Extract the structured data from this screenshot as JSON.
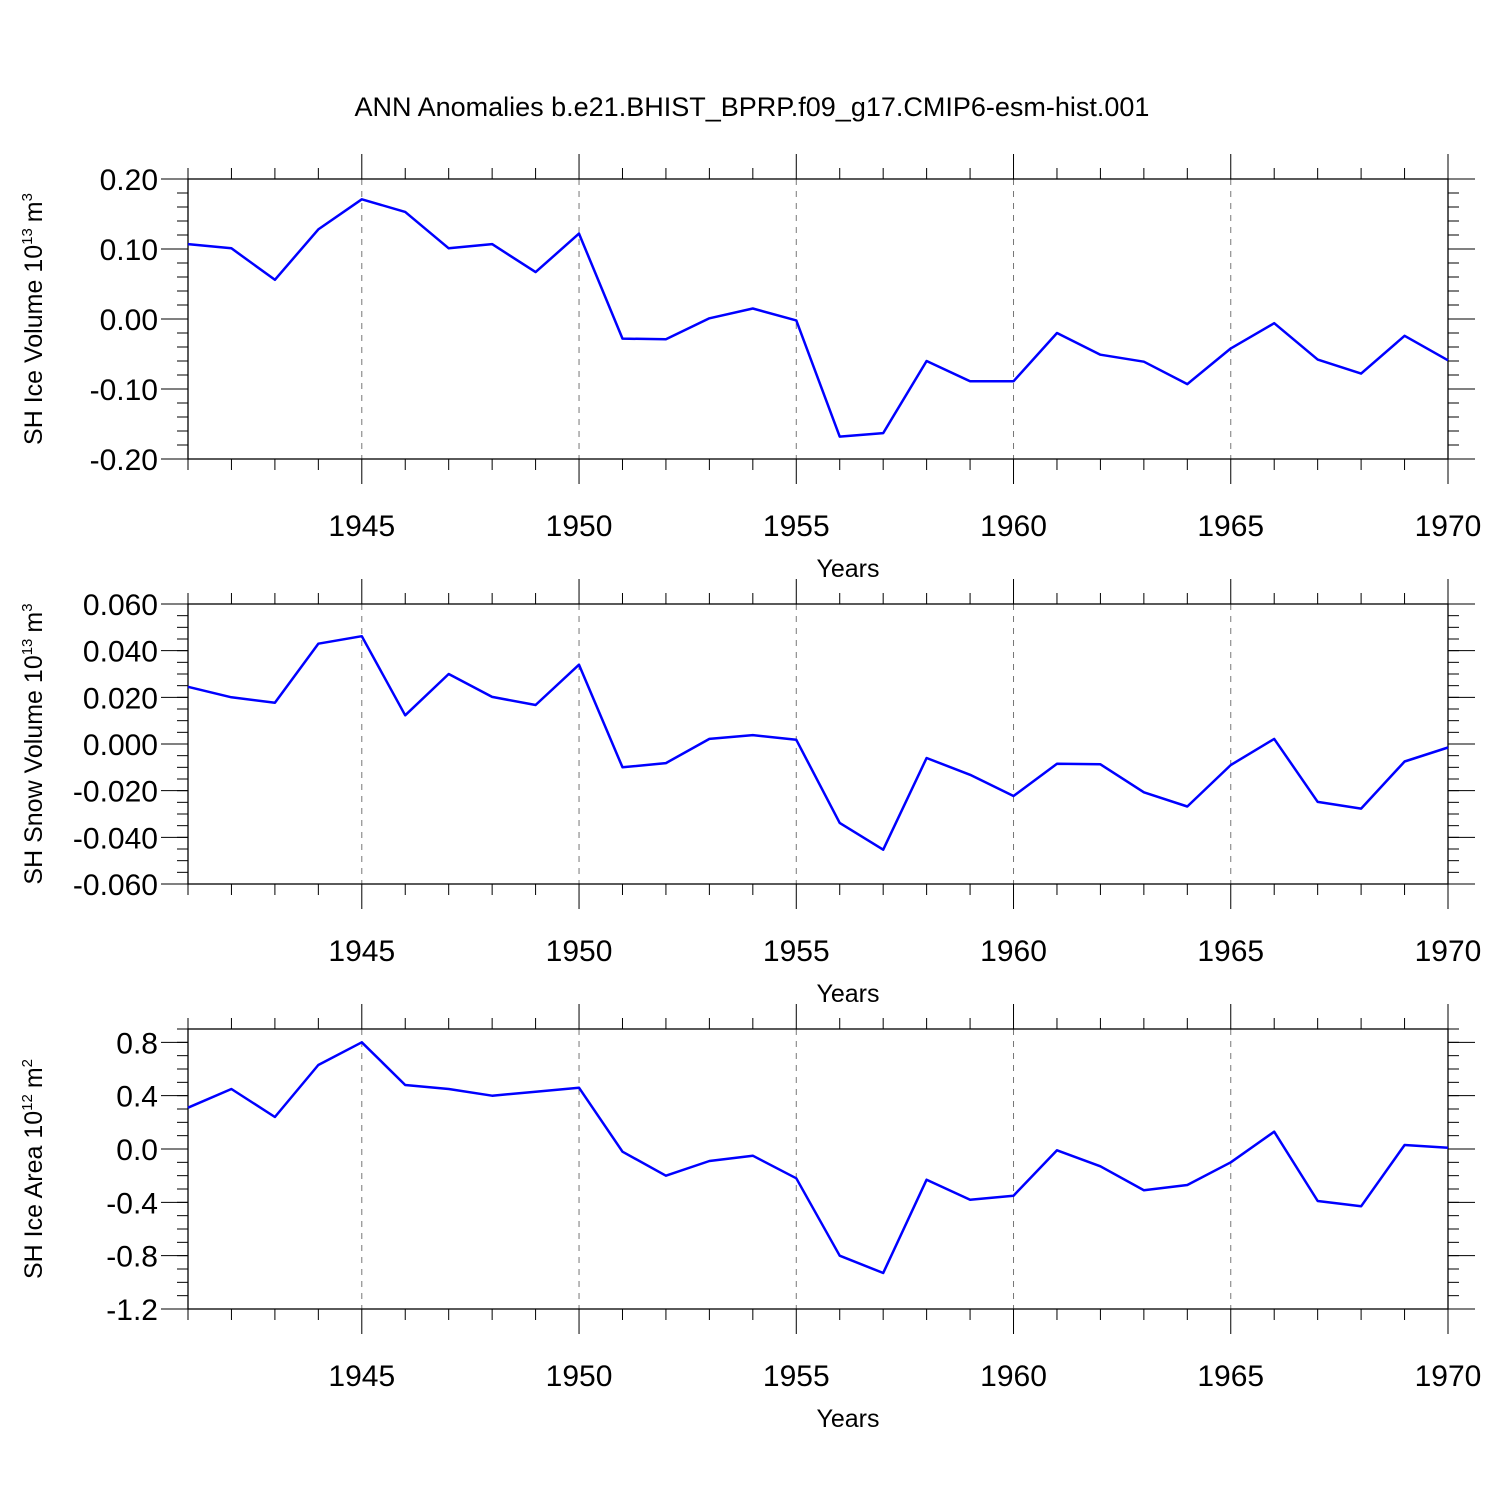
{
  "figure": {
    "title": "ANN Anomalies b.e21.BHIST_BPRP.f09_g17.CMIP6-esm-hist.001",
    "line_color": "#0000ff",
    "grid_color": "#777777"
  },
  "chart_data": [
    {
      "type": "line",
      "ylabel": {
        "text": "SH Ice Volume 10",
        "exp": "13",
        "unit": "m",
        "unit_exp": "3"
      },
      "xlabel": "Years",
      "xlim": [
        1941,
        1970
      ],
      "ylim": [
        -0.2,
        0.2
      ],
      "yticks": [
        -0.2,
        -0.1,
        0.0,
        0.1,
        0.2
      ],
      "ytick_labels": [
        "-0.20",
        "-0.10",
        "0.00",
        "0.10",
        "0.20"
      ],
      "yminor_step": 0.02,
      "xticks": [
        1945,
        1950,
        1955,
        1960,
        1965,
        1970
      ],
      "xtick_labels": [
        "1945",
        "1950",
        "1955",
        "1960",
        "1965",
        "1970"
      ],
      "grid": "vertical dashed at major x ticks",
      "series": [
        {
          "x": [
            1941,
            1942,
            1943,
            1944,
            1945,
            1946,
            1947,
            1948,
            1949,
            1950,
            1951,
            1952,
            1953,
            1954,
            1955,
            1956,
            1957,
            1958,
            1959,
            1960,
            1961,
            1962,
            1963,
            1964,
            1965,
            1966,
            1967,
            1968,
            1969,
            1970
          ],
          "values": [
            0.107,
            0.101,
            0.056,
            0.128,
            0.171,
            0.153,
            0.101,
            0.107,
            0.067,
            0.122,
            -0.028,
            -0.029,
            0.001,
            0.015,
            -0.002,
            -0.168,
            -0.163,
            -0.06,
            -0.089,
            -0.089,
            -0.02,
            -0.051,
            -0.061,
            -0.093,
            -0.042,
            -0.006,
            -0.058,
            -0.078,
            -0.024,
            -0.059
          ]
        }
      ]
    },
    {
      "type": "line",
      "ylabel": {
        "text": "SH Snow Volume 10",
        "exp": "13",
        "unit": "m",
        "unit_exp": "3"
      },
      "xlabel": "Years",
      "xlim": [
        1941,
        1970
      ],
      "ylim": [
        -0.06,
        0.06
      ],
      "yticks": [
        -0.06,
        -0.04,
        -0.02,
        0.0,
        0.02,
        0.04,
        0.06
      ],
      "ytick_labels": [
        "-0.060",
        "-0.040",
        "-0.020",
        "0.000",
        "0.020",
        "0.040",
        "0.060"
      ],
      "yminor_step": 0.005,
      "xticks": [
        1945,
        1950,
        1955,
        1960,
        1965,
        1970
      ],
      "xtick_labels": [
        "1945",
        "1950",
        "1955",
        "1960",
        "1965",
        "1970"
      ],
      "grid": "vertical dashed at major x ticks",
      "series": [
        {
          "x": [
            1941,
            1942,
            1943,
            1944,
            1945,
            1946,
            1947,
            1948,
            1949,
            1950,
            1951,
            1952,
            1953,
            1954,
            1955,
            1956,
            1957,
            1958,
            1959,
            1960,
            1961,
            1962,
            1963,
            1964,
            1965,
            1966,
            1967,
            1968,
            1969,
            1970
          ],
          "values": [
            0.0245,
            0.02,
            0.0177,
            0.043,
            0.0462,
            0.0123,
            0.03,
            0.0202,
            0.0167,
            0.034,
            -0.01,
            -0.0082,
            0.0022,
            0.0038,
            0.0018,
            -0.0338,
            -0.0453,
            -0.006,
            -0.0132,
            -0.0223,
            -0.0085,
            -0.0087,
            -0.0207,
            -0.0268,
            -0.009,
            0.0022,
            -0.0248,
            -0.0277,
            -0.0075,
            -0.0015
          ]
        }
      ]
    },
    {
      "type": "line",
      "ylabel": {
        "text": "SH Ice Area 10",
        "exp": "12",
        "unit": "m",
        "unit_exp": "2"
      },
      "xlabel": "Years",
      "xlim": [
        1941,
        1970
      ],
      "ylim": [
        -1.2,
        0.9
      ],
      "yticks": [
        -1.2,
        -0.8,
        -0.4,
        0.0,
        0.4,
        0.8
      ],
      "ytick_labels": [
        "-1.2",
        "-0.8",
        "-0.4",
        "0.0",
        "0.4",
        "0.8"
      ],
      "yminor_step": 0.1,
      "xticks": [
        1945,
        1950,
        1955,
        1960,
        1965,
        1970
      ],
      "xtick_labels": [
        "1945",
        "1950",
        "1955",
        "1960",
        "1965",
        "1970"
      ],
      "grid": "vertical dashed at major x ticks",
      "series": [
        {
          "x": [
            1941,
            1942,
            1943,
            1944,
            1945,
            1946,
            1947,
            1948,
            1949,
            1950,
            1951,
            1952,
            1953,
            1954,
            1955,
            1956,
            1957,
            1958,
            1959,
            1960,
            1961,
            1962,
            1963,
            1964,
            1965,
            1966,
            1967,
            1968,
            1969,
            1970
          ],
          "values": [
            0.31,
            0.45,
            0.24,
            0.63,
            0.8,
            0.48,
            0.45,
            0.4,
            0.43,
            0.46,
            -0.02,
            -0.2,
            -0.09,
            -0.05,
            -0.22,
            -0.8,
            -0.93,
            -0.23,
            -0.38,
            -0.35,
            -0.01,
            -0.13,
            -0.31,
            -0.27,
            -0.1,
            0.13,
            -0.39,
            -0.43,
            0.03,
            0.01
          ]
        }
      ]
    }
  ]
}
